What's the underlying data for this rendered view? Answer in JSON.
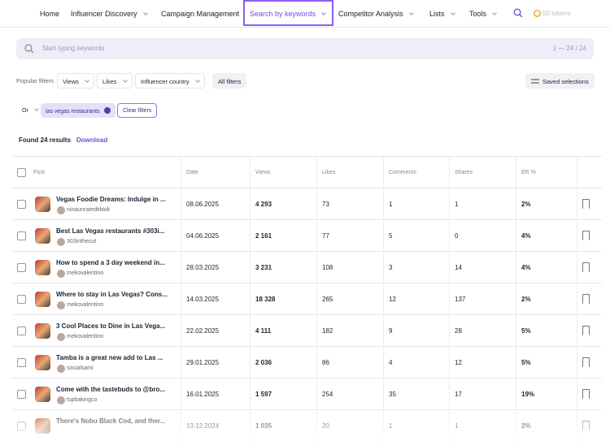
{
  "nav": {
    "items": [
      "Home",
      "Influencer Discovery",
      "Campaign Management",
      "Search by keywords",
      "Competitor Analysis",
      "Lists",
      "Tools"
    ],
    "tokens": "50 tokens"
  },
  "search": {
    "placeholder": "Start typing keywords",
    "counter": "1 — 24 / 24"
  },
  "filters": {
    "label": "Popular filters",
    "buttons": [
      "Views",
      "Likes",
      "Influencer country",
      "All filters"
    ],
    "saved": "Saved selections"
  },
  "chips": {
    "operator": "Or",
    "keyword": "las vegas restaurants",
    "clear": "Clear filters"
  },
  "results": {
    "found": "Found 24 results",
    "download": "Download"
  },
  "table": {
    "headers": [
      "Post",
      "Date",
      "Views",
      "Likes",
      "Comments",
      "Shares",
      "ER %"
    ],
    "rows": [
      [
        "Vegas Foodie Dreams: Indulge in ...",
        "ninaunratedtiktok",
        "08.06.2025",
        "4 293",
        "73",
        "1",
        "1",
        "2%"
      ],
      [
        "Best Las Vegas restaurants #303i...",
        "303inthecut",
        "04.06.2025",
        "2 161",
        "77",
        "5",
        "0",
        "4%"
      ],
      [
        "How to spend a 3 day weekend in...",
        "mekovalentino",
        "28.03.2025",
        "3 231",
        "108",
        "3",
        "14",
        "4%"
      ],
      [
        "Where to stay in Las Vegas? Cons...",
        "mekovalentino",
        "14.03.2025",
        "18 328",
        "265",
        "12",
        "137",
        "2%"
      ],
      [
        "3 Cool Places to Dine in Las Vega...",
        "mekovalentino",
        "22.02.2025",
        "4 111",
        "182",
        "9",
        "28",
        "5%"
      ],
      [
        "Tamba is a great new add to Las ...",
        "socialsami",
        "29.01.2025",
        "2 036",
        "86",
        "4",
        "12",
        "5%"
      ],
      [
        "Come with the tastebuds to @bro...",
        "tspbakingco",
        "16.01.2025",
        "1 597",
        "254",
        "35",
        "17",
        "19%"
      ],
      [
        "There's Nobu Black Cod, and ther...",
        null,
        "13.12.2024",
        "1 035",
        "20",
        "1",
        "1",
        "2%"
      ]
    ]
  }
}
